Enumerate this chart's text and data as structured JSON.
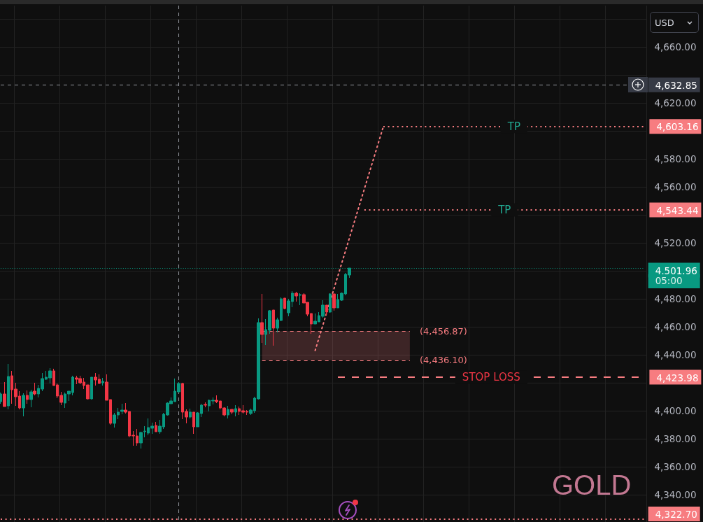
{
  "chart_data": {
    "type": "candlestick",
    "title": "GOLD",
    "ylabel": "USD",
    "categories": [
      null,
      null,
      null,
      null,
      null,
      null,
      null,
      null,
      null,
      null,
      null,
      null,
      null,
      null,
      null,
      null,
      null,
      null,
      null,
      null,
      null,
      null,
      null,
      null,
      null,
      null,
      null,
      null,
      null,
      null,
      null,
      null,
      null,
      null,
      null,
      null,
      null,
      null,
      null,
      null,
      null,
      null,
      null,
      null,
      null,
      null,
      null,
      null,
      null,
      null,
      null,
      null,
      null,
      null,
      null,
      null,
      null,
      null,
      null,
      null,
      null,
      null,
      null,
      null,
      null,
      null,
      null,
      null,
      null,
      null,
      null,
      null,
      null,
      null,
      null,
      null,
      null,
      null,
      null,
      null,
      null,
      null,
      null,
      null,
      null,
      null,
      null,
      null,
      null,
      null,
      null,
      null,
      null,
      null,
      null,
      null,
      null,
      null,
      null,
      null,
      null,
      null,
      null,
      null,
      null,
      null,
      null,
      null,
      null,
      null,
      null,
      null,
      null,
      null,
      null,
      null,
      null,
      null,
      null,
      null,
      null,
      null,
      null,
      null,
      null,
      null,
      null,
      null,
      null,
      null,
      null,
      null,
      null,
      null,
      null,
      null,
      null,
      null,
      null,
      null,
      null,
      null,
      null,
      null,
      null,
      null,
      null,
      null,
      null,
      null,
      null,
      null,
      null,
      null,
      null,
      null,
      null,
      null,
      null,
      null,
      null,
      null,
      null,
      null,
      null,
      null,
      null,
      null,
      null,
      null,
      null
    ],
    "ohlc": [
      [
        4406.5,
        4413,
        4405,
        4412
      ],
      [
        4412,
        4420.5,
        4403,
        4403
      ],
      [
        4403.5,
        4433.5,
        4401,
        4424.5
      ],
      [
        4425,
        4428.5,
        4405,
        4415
      ],
      [
        4415.5,
        4420,
        4403.5,
        4410
      ],
      [
        4410.5,
        4414,
        4401,
        4402
      ],
      [
        4402,
        4412.5,
        4396,
        4411
      ],
      [
        4411,
        4414.5,
        4405,
        4408
      ],
      [
        4408,
        4415,
        4402.5,
        4413.5
      ],
      [
        4414,
        4420,
        4411,
        4412
      ],
      [
        4412,
        4418.5,
        4409.5,
        4416
      ],
      [
        4415.5,
        4427,
        4414,
        4423
      ],
      [
        4422.5,
        4428.5,
        4422,
        4424
      ],
      [
        4423.5,
        4430.5,
        4419.5,
        4428.5
      ],
      [
        4428.5,
        4430,
        4418,
        4418
      ],
      [
        4418.5,
        4419.5,
        4409,
        4410.5
      ],
      [
        4411,
        4413.5,
        4404,
        4406
      ],
      [
        4405.5,
        4413,
        4402,
        4412
      ],
      [
        4412,
        4414,
        4407,
        4414
      ],
      [
        4413,
        4425,
        4411,
        4424
      ],
      [
        4423.5,
        4425,
        4419,
        4422.5
      ],
      [
        4423,
        4425,
        4419,
        4420
      ],
      [
        4420.5,
        4423.5,
        4415.5,
        4418
      ],
      [
        4418.5,
        4418.5,
        4408,
        4408.5
      ],
      [
        4408.5,
        4424,
        4408,
        4424
      ],
      [
        4424,
        4427,
        4418,
        4422
      ],
      [
        4422.5,
        4426,
        4419,
        4419.5
      ],
      [
        4420,
        4423.5,
        4418,
        4421
      ],
      [
        4420.5,
        4426,
        4407.5,
        4407.5
      ],
      [
        4408,
        4408,
        4390,
        4391
      ],
      [
        4391,
        4398.5,
        4388,
        4397
      ],
      [
        4397,
        4402,
        4394,
        4399
      ],
      [
        4399.5,
        4405,
        4397.5,
        4400.5
      ],
      [
        4400.5,
        4405.5,
        4398,
        4399
      ],
      [
        4399.5,
        4399.5,
        4381,
        4382
      ],
      [
        4382.5,
        4385.5,
        4375,
        4382
      ],
      [
        4382,
        4387,
        4375,
        4377
      ],
      [
        4377,
        4385,
        4373,
        4384.5
      ],
      [
        4385,
        4389,
        4381,
        4385.5
      ],
      [
        4384,
        4394.5,
        4382.5,
        4388
      ],
      [
        4387.5,
        4391.5,
        4383.5,
        4389
      ],
      [
        4389.5,
        4392,
        4385,
        4385
      ],
      [
        4385,
        4393.5,
        4383.5,
        4389
      ],
      [
        4388.5,
        4398.5,
        4387,
        4397.5
      ],
      [
        4397,
        4406,
        4396.5,
        4405.5
      ],
      [
        4405,
        4409.5,
        4405,
        4407
      ],
      [
        4406.5,
        4423,
        4406.5,
        4414
      ],
      [
        4413.5,
        4420.5,
        4413,
        4419.5
      ],
      [
        4419.5,
        4420,
        4394,
        4399
      ],
      [
        4399.5,
        4401,
        4391,
        4395.5
      ],
      [
        4395.5,
        4401.5,
        4394.5,
        4399
      ],
      [
        4399,
        4399,
        4383.5,
        4388.5
      ],
      [
        4388.5,
        4399,
        4388.5,
        4398.5
      ],
      [
        4398,
        4405,
        4395.5,
        4404
      ],
      [
        4404.5,
        4406,
        4402.5,
        4404
      ],
      [
        4403.5,
        4408,
        4399.5,
        4407.5
      ],
      [
        4407,
        4409.5,
        4404.5,
        4407.5
      ],
      [
        4407.5,
        4411,
        4405.5,
        4406.5
      ],
      [
        4407,
        4407,
        4401,
        4402
      ],
      [
        4402,
        4402.5,
        4396,
        4397
      ],
      [
        4397,
        4403.5,
        4394.5,
        4401
      ],
      [
        4401,
        4401,
        4397.5,
        4399
      ],
      [
        4399,
        4404,
        4396,
        4401.5
      ],
      [
        4401.5,
        4403,
        4397,
        4399.5
      ],
      [
        4400,
        4404,
        4398,
        4399
      ],
      [
        4399.5,
        4400.5,
        4397,
        4399
      ],
      [
        4398,
        4401.5,
        4397,
        4400.5
      ],
      [
        4400,
        4410,
        4398.5,
        4409
      ],
      [
        4408.5,
        4466,
        4408,
        4463
      ],
      [
        4463,
        4483.5,
        4448.5,
        4454.5
      ],
      [
        4454.5,
        4465.5,
        4447,
        4458
      ],
      [
        4457.5,
        4472,
        4455,
        4471.5
      ],
      [
        4472,
        4472,
        4446.5,
        4459
      ],
      [
        4459,
        4466.5,
        4456,
        4465
      ],
      [
        4464.5,
        4481,
        4464,
        4480
      ],
      [
        4480.5,
        4480.5,
        4472.5,
        4473
      ],
      [
        4470,
        4480,
        4467.5,
        4478.5
      ],
      [
        4478,
        4485.5,
        4474,
        4484
      ],
      [
        4484,
        4485,
        4478,
        4482
      ],
      [
        4482.5,
        4484,
        4475.5,
        4483
      ],
      [
        4483,
        4484,
        4477,
        4477
      ],
      [
        4477.5,
        4477.5,
        4467.5,
        4469
      ],
      [
        4469.5,
        4469.5,
        4455,
        4462
      ],
      [
        4462,
        4469.5,
        4462,
        4464
      ],
      [
        4463.5,
        4470.5,
        4463.5,
        4468
      ],
      [
        4467.5,
        4479,
        4466.5,
        4475.5
      ],
      [
        4475.5,
        4475.5,
        4468.5,
        4470.5
      ],
      [
        4470.5,
        4484,
        4470,
        4483.5
      ],
      [
        4483.5,
        4483.5,
        4471.5,
        4473.5
      ],
      [
        4473.5,
        4483.5,
        4473.5,
        4479.5
      ],
      [
        4479,
        4484.5,
        4478.5,
        4484
      ],
      [
        4483.5,
        4498.5,
        4482.5,
        4497.5
      ],
      [
        4497,
        4502,
        4495,
        4501.96
      ],
      null,
      null,
      null,
      null,
      null,
      null,
      null,
      null,
      null,
      null,
      null,
      null,
      null,
      null,
      null,
      null,
      null,
      null,
      null,
      null,
      null,
      null,
      null,
      null,
      null,
      null,
      null,
      null,
      null,
      null,
      null,
      null,
      null,
      null,
      null,
      null,
      null,
      null,
      null,
      null,
      null,
      null,
      null,
      null,
      null,
      null,
      null,
      null,
      null,
      null,
      null,
      null,
      null,
      null,
      null,
      null,
      null,
      null,
      null,
      null,
      null,
      null,
      null,
      null,
      null,
      null,
      null,
      null,
      null,
      null,
      null,
      null,
      null,
      null,
      null,
      null,
      null,
      null
    ],
    "colors": [
      "#089981",
      "#f23645",
      "#089981",
      "#f23645",
      "#f23645",
      "#f23645",
      "#089981",
      "#f23645",
      "#089981",
      "#f23645",
      "#089981",
      "#089981",
      "#089981",
      "#089981",
      "#f23645",
      "#f23645",
      "#f23645",
      "#089981",
      "#089981",
      "#089981",
      "#f23645",
      "#f23645",
      "#f23645",
      "#f23645",
      "#089981",
      "#f23645",
      "#f23645",
      "#089981",
      "#f23645",
      "#f23645",
      "#089981",
      "#089981",
      "#089981",
      "#f23645",
      "#f23645",
      "#f23645",
      "#f23645",
      "#089981",
      "#089981",
      "#089981",
      "#089981",
      "#f23645",
      "#089981",
      "#089981",
      "#089981",
      "#089981",
      "#089981",
      "#089981",
      "#f23645",
      "#f23645",
      "#089981",
      "#f23645",
      "#089981",
      "#089981",
      "#f23645",
      "#089981",
      "#089981",
      "#f23645",
      "#f23645",
      "#f23645",
      "#089981",
      "#f23645",
      "#089981",
      "#f23645",
      "#f23645",
      "#f23645",
      "#089981",
      "#089981",
      "#089981",
      "#f23645",
      "#089981",
      "#089981",
      "#f23645",
      "#089981",
      "#089981",
      "#f23645",
      "#089981",
      "#089981",
      "#f23645",
      "#089981",
      "#f23645",
      "#f23645",
      "#f23645",
      "#089981",
      "#089981",
      "#089981",
      "#f23645",
      "#089981",
      "#f23645",
      "#089981",
      "#089981",
      "#089981",
      "#089981",
      null,
      null,
      null,
      null,
      null,
      null,
      null,
      null,
      null,
      null,
      null,
      null,
      null,
      null,
      null,
      null,
      null,
      null,
      null,
      null,
      null,
      null,
      null,
      null,
      null,
      null,
      null,
      null,
      null,
      null,
      null,
      null,
      null,
      null,
      null,
      null,
      null,
      null,
      null,
      null,
      null,
      null,
      null,
      null,
      null,
      null,
      null,
      null,
      null,
      null,
      null,
      null,
      null,
      null,
      null,
      null,
      null,
      null,
      null,
      null,
      null,
      null,
      null,
      null,
      null,
      null,
      null,
      null,
      null,
      null,
      null,
      null,
      null,
      null,
      null,
      null,
      null,
      null
    ],
    "series": [
      {
        "type": "line",
        "color": "#f77c80",
        "line_style": "dotted",
        "values": [
          null,
          null,
          null,
          null,
          null,
          null,
          null,
          null,
          null,
          null,
          null,
          null,
          null,
          null,
          null,
          null,
          null,
          null,
          null,
          null,
          null,
          null,
          null,
          null,
          null,
          null,
          null,
          null,
          null,
          null,
          null,
          null,
          null,
          null,
          null,
          null,
          null,
          null,
          null,
          null,
          null,
          null,
          null,
          null,
          null,
          null,
          null,
          null,
          null,
          null,
          null,
          null,
          null,
          null,
          null,
          null,
          null,
          null,
          null,
          null,
          null,
          null,
          null,
          null,
          null,
          null,
          null,
          null,
          null,
          null,
          null,
          null,
          null,
          null,
          null,
          null,
          null,
          null,
          null,
          null,
          null,
          null,
          null,
          4443,
          null,
          null,
          null,
          null,
          null,
          null,
          null,
          null,
          null,
          null,
          null,
          null,
          null,
          null,
          null,
          null,
          null,
          4603,
          null,
          null,
          null,
          null,
          null,
          null,
          null,
          null,
          null,
          null,
          null,
          null,
          null,
          null,
          null,
          null,
          null,
          null,
          null,
          null,
          null,
          null,
          null,
          null,
          null,
          null,
          null,
          null,
          null,
          null,
          null,
          null,
          null,
          null,
          null,
          null,
          null,
          null,
          null,
          null,
          null,
          null,
          null,
          null,
          null,
          null,
          null,
          null,
          null,
          null,
          null,
          null,
          null,
          null,
          null,
          null,
          null,
          null,
          null,
          null,
          null,
          null,
          null,
          null,
          null,
          null,
          null,
          null,
          null
        ]
      }
    ],
    "ylim": [
      4320.5,
      4689.5
    ],
    "yticks": [
      {
        "value": 4340,
        "label": "4,340.00"
      },
      {
        "value": 4360,
        "label": "4,360.00"
      },
      {
        "value": 4380,
        "label": "4,380.00"
      },
      {
        "value": 4400,
        "label": "4,400.00"
      },
      {
        "value": 4420,
        "label": null
      },
      {
        "value": 4423.98,
        "label": "4,423.98"
      },
      {
        "value": 4440,
        "label": "4,440.00"
      },
      {
        "value": 4460,
        "label": "4,460.00"
      },
      {
        "value": 4480,
        "label": "4,480.00"
      },
      {
        "value": 4500,
        "label": null
      },
      {
        "value": 4520,
        "label": "4,520.00"
      },
      {
        "value": 4540,
        "label": null
      },
      {
        "value": 4543.44,
        "label": "4,543.44"
      },
      {
        "value": 4560,
        "label": "4,560.00"
      },
      {
        "value": 4580,
        "label": "4,580.00"
      },
      {
        "value": 4600,
        "label": null
      },
      {
        "value": 4603.16,
        "label": "4,603.16"
      },
      {
        "value": 4620,
        "label": "4,620.00"
      },
      {
        "value": 4640,
        "label": null
      },
      {
        "value": 4660,
        "label": "4,660.00"
      },
      {
        "value": 4680,
        "label": null
      }
    ],
    "ref_lines": [
      {
        "axis": "y",
        "value": 4632.85,
        "label": "4,632.85",
        "color": "#9598a1",
        "line_style": "dashed"
      },
      {
        "axis": "y",
        "value": 4603.16,
        "label": "TP",
        "color": "#f77c80",
        "line_style": "dotted"
      },
      {
        "axis": "y",
        "value": 4543.44,
        "label": "TP",
        "color": "#f77c80",
        "line_style": "dotted"
      },
      {
        "axis": "y",
        "value": 4501.96,
        "label": "4,501.96",
        "color": "#089981",
        "line_style": "dotted"
      },
      {
        "axis": "y",
        "value": 4456.87,
        "label": "(4,456.87)",
        "color": "#f77c80",
        "line_style": "dashed"
      },
      {
        "axis": "y",
        "value": 4436.1,
        "label": "(4,436.10)",
        "color": "#f77c80",
        "line_style": "dashed"
      },
      {
        "axis": "y",
        "value": 4423.98,
        "label": "STOP LOSS",
        "color": "#f77c80",
        "line_style": "dashed"
      },
      {
        "axis": "y",
        "value": 4322.7,
        "label": "4,322.70",
        "color": "#f77c80",
        "line_style": "dotted"
      }
    ],
    "bands": [
      {
        "axis": "y",
        "from": 4436.1,
        "to": 4456.87,
        "color": "#f77c80"
      }
    ],
    "annotations": [
      "05:00"
    ],
    "grid": true,
    "tick_labels": "y"
  }
}
